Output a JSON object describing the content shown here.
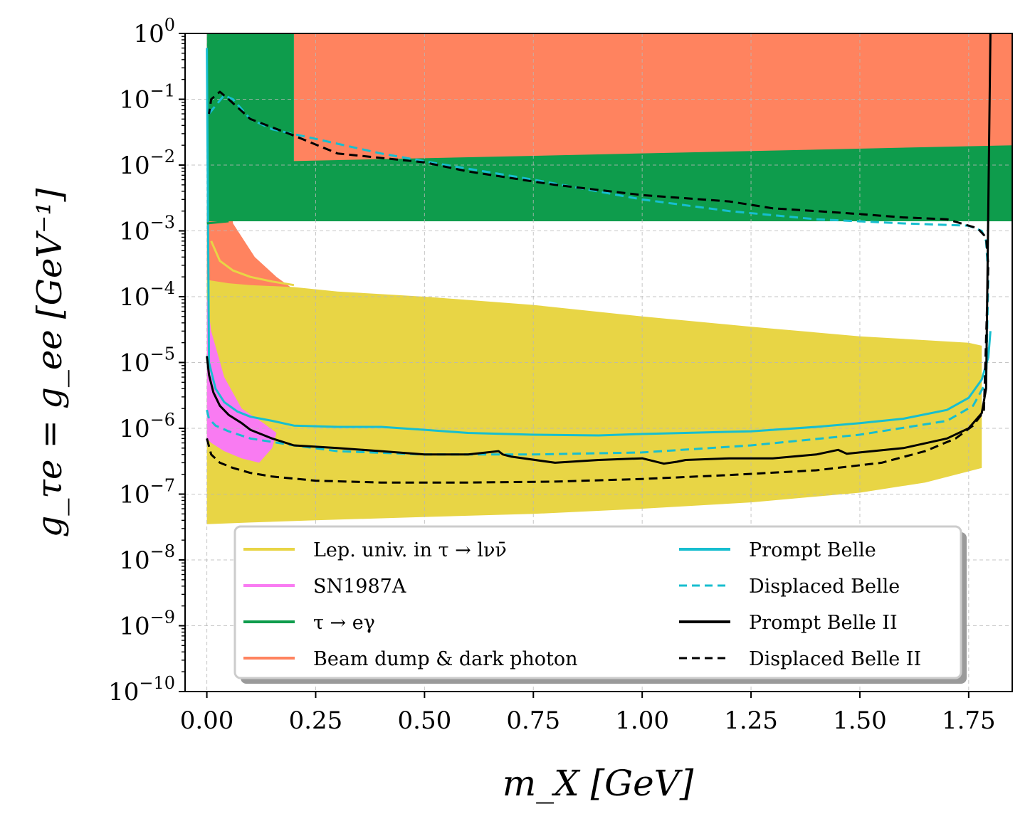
{
  "chart_data": {
    "type": "area",
    "xlabel": "m_X [GeV]",
    "ylabel": "g_τe = g_ee [GeV⁻¹]",
    "xlim": [
      -0.05,
      1.85
    ],
    "ylim_log10": [
      -10,
      0
    ],
    "yscale": "log",
    "grid": true,
    "x_ticks": [
      0.0,
      0.25,
      0.5,
      0.75,
      1.0,
      1.25,
      1.5,
      1.75
    ],
    "x_tick_labels": [
      "0.00",
      "0.25",
      "0.50",
      "0.75",
      "1.00",
      "1.25",
      "1.50",
      "1.75"
    ],
    "y_ticks_log10": [
      0,
      -1,
      -2,
      -3,
      -4,
      -5,
      -6,
      -7,
      -8,
      -9,
      -10
    ],
    "y_tick_labels": [
      "10^0",
      "10^−1",
      "10^−2",
      "10^−3",
      "10^−4",
      "10^−5",
      "10^−6",
      "10^−7",
      "10^−8",
      "10^−9",
      "10^−10"
    ],
    "legend_position": "lower-center",
    "regions": [
      {
        "name": "Beam dump & dark photon",
        "color": "#FF835F",
        "x_lower": [
          0.2,
          0.2,
          0.5,
          1.0,
          1.5,
          1.85
        ],
        "y_lower": [
          0.0115,
          0.0062,
          0.0055,
          0.005,
          0.0045,
          0.004
        ],
        "x_upper": [
          0.2,
          1.85
        ],
        "y_upper": [
          1.0,
          1.0
        ]
      },
      {
        "name": "Beam dump & dark photon (low-mass)",
        "color": "#FF835F",
        "x": [
          0.0,
          0.02,
          0.06,
          0.11,
          0.16,
          0.21,
          0.215,
          0.215,
          0.1,
          0.05,
          0.01,
          0.0
        ],
        "y": [
          1.0,
          1.0,
          0.0013,
          0.0004,
          0.0002,
          0.000115,
          0.0001,
          2.5e-05,
          2.4e-05,
          2.4e-05,
          3e-05,
          5e-05
        ]
      },
      {
        "name": "τ → eγ",
        "color": "#0E9C4C",
        "x": [
          0.0,
          0.2,
          0.2,
          1.85,
          1.85,
          0.0
        ],
        "y": [
          1.0,
          1.0,
          0.0115,
          0.02,
          0.0014,
          0.0014
        ]
      },
      {
        "name": "Lep. univ. in τ → lνν̄",
        "color": "#E8D545",
        "x_upper": [
          0.0,
          0.05,
          0.1,
          0.2,
          0.3,
          0.5,
          0.75,
          1.0,
          1.25,
          1.5,
          1.75,
          1.78
        ],
        "y_upper": [
          0.00018,
          0.00016,
          0.00015,
          0.00014,
          0.00012,
          0.0001,
          7.5e-05,
          5e-05,
          3.5e-05,
          2.5e-05,
          2e-05,
          1.8e-05
        ],
        "x_lower": [
          0.0,
          0.1,
          0.25,
          0.5,
          0.75,
          1.0,
          1.25,
          1.5,
          1.65,
          1.78
        ],
        "y_lower": [
          3.5e-08,
          3.7e-08,
          4e-08,
          4.5e-08,
          5e-08,
          6e-08,
          7.5e-08,
          1.05e-07,
          1.5e-07,
          2.5e-07
        ]
      },
      {
        "name": "SN1987A",
        "color": "#F97BF2",
        "x": [
          0.0,
          0.01,
          0.04,
          0.08,
          0.13,
          0.16,
          0.15,
          0.12,
          0.08,
          0.04,
          0.01,
          0.0
        ],
        "y": [
          0.0001,
          3e-05,
          6e-06,
          2e-06,
          1.2e-06,
          8.5e-07,
          5e-07,
          3e-07,
          3.5e-07,
          4.5e-07,
          6e-07,
          7e-07
        ]
      }
    ],
    "series": [
      {
        "name": "Prompt Belle",
        "color": "#17BECF",
        "style": "solid",
        "x": [
          0.0,
          0.005,
          0.02,
          0.04,
          0.07,
          0.1,
          0.15,
          0.2,
          0.3,
          0.4,
          0.5,
          0.6,
          0.75,
          0.9,
          1.0,
          1.25,
          1.4,
          1.5,
          1.6,
          1.7,
          1.75,
          1.78,
          1.795,
          1.8
        ],
        "y": [
          0.6,
          1e-05,
          4e-06,
          2.5e-06,
          1.8e-06,
          1.5e-06,
          1.3e-06,
          1.1e-06,
          1.05e-06,
          1.05e-06,
          9.5e-07,
          8.5e-07,
          8e-07,
          7.8e-07,
          8.2e-07,
          9e-07,
          1.05e-06,
          1.2e-06,
          1.4e-06,
          1.9e-06,
          2.9e-06,
          5.5e-06,
          1.2e-05,
          3e-05
        ]
      },
      {
        "name": "Displaced Belle",
        "color": "#17BECF",
        "style": "dashed",
        "x": [
          0.0,
          0.005,
          0.02,
          0.05,
          0.1,
          0.2,
          0.3,
          0.5,
          0.75,
          1.0,
          1.25,
          1.5,
          1.7,
          1.76,
          1.79,
          1.795,
          1.79,
          1.78,
          1.75,
          1.6,
          1.4,
          1.2,
          1.0,
          0.75,
          0.55,
          0.4,
          0.25,
          0.15,
          0.1,
          0.06,
          0.04,
          0.02,
          0.005
        ],
        "y": [
          1.9e-06,
          1.4e-06,
          1.1e-06,
          9e-07,
          7e-07,
          5.5e-07,
          4.5e-07,
          4e-07,
          4e-07,
          4.3e-07,
          5.5e-07,
          8e-07,
          1.3e-06,
          2.2e-06,
          5e-06,
          0.0002,
          0.0007,
          0.001,
          0.0012,
          0.0013,
          0.0015,
          0.002,
          0.003,
          0.006,
          0.01,
          0.015,
          0.025,
          0.035,
          0.05,
          0.1,
          0.115,
          0.08,
          0.06
        ]
      },
      {
        "name": "Prompt Belle II",
        "color": "#000000",
        "style": "solid",
        "x": [
          0.0,
          0.005,
          0.015,
          0.03,
          0.05,
          0.08,
          0.1,
          0.15,
          0.2,
          0.3,
          0.4,
          0.5,
          0.6,
          0.67,
          0.68,
          0.7,
          0.8,
          0.9,
          1.0,
          1.05,
          1.08,
          1.1,
          1.2,
          1.3,
          1.4,
          1.45,
          1.47,
          1.5,
          1.6,
          1.7,
          1.75,
          1.78,
          1.79,
          1.8
        ],
        "y": [
          1.25e-05,
          6.5e-06,
          3.5e-06,
          2.2e-06,
          1.6e-06,
          1.2e-06,
          9.5e-07,
          7e-07,
          5.5e-07,
          5e-07,
          4.5e-07,
          4e-07,
          4e-07,
          4.5e-07,
          4e-07,
          3.7e-07,
          3e-07,
          3.3e-07,
          3.5e-07,
          2.9e-07,
          3.1e-07,
          3.3e-07,
          3.5e-07,
          3.5e-07,
          4e-07,
          4.7e-07,
          4.1e-07,
          4.3e-07,
          5e-07,
          7e-07,
          1e-06,
          1.7e-06,
          4e-06,
          1.0
        ]
      },
      {
        "name": "Displaced Belle II",
        "color": "#000000",
        "style": "dashed",
        "x": [
          0.0,
          0.01,
          0.03,
          0.06,
          0.1,
          0.15,
          0.25,
          0.4,
          0.6,
          0.8,
          1.0,
          1.2,
          1.4,
          1.55,
          1.65,
          1.72,
          1.76,
          1.785,
          1.795,
          1.79,
          1.77,
          1.7,
          1.6,
          1.5,
          1.4,
          1.3,
          1.2,
          1.0,
          0.8,
          0.6,
          0.5,
          0.3,
          0.2,
          0.1,
          0.05,
          0.03,
          0.01,
          0.005
        ],
        "y": [
          7e-07,
          4e-07,
          3e-07,
          2.5e-07,
          2.1e-07,
          1.85e-07,
          1.6e-07,
          1.5e-07,
          1.5e-07,
          1.55e-07,
          1.7e-07,
          1.95e-07,
          2.3e-07,
          3e-07,
          4.5e-07,
          7e-07,
          1.1e-06,
          1.8e-06,
          0.0003,
          0.0008,
          0.0011,
          0.0015,
          0.0016,
          0.0018,
          0.002,
          0.0022,
          0.0028,
          0.0035,
          0.005,
          0.008,
          0.011,
          0.015,
          0.028,
          0.05,
          0.1,
          0.13,
          0.1,
          0.06
        ]
      },
      {
        "name": "Lep. univ. in τ → lνν̄ (edge)",
        "color": "#E8D545",
        "style": "solid",
        "x": [
          0.01,
          0.03,
          0.06,
          0.1,
          0.15,
          0.2
        ],
        "y": [
          0.0007,
          0.00035,
          0.00025,
          0.0002,
          0.00017,
          0.00015
        ]
      },
      {
        "name": "τ → eγ (edge)",
        "color": "#0E9C4C",
        "style": "solid",
        "x": [
          0.0,
          0.05
        ],
        "y": [
          0.0013,
          0.0014
        ]
      }
    ],
    "legend": {
      "items": [
        {
          "label": "Lep. univ. in τ → lνν̄",
          "color": "#E8D545",
          "style": "solid"
        },
        {
          "label": "SN1987A",
          "color": "#F97BF2",
          "style": "solid"
        },
        {
          "label": "τ → eγ",
          "color": "#0E9C4C",
          "style": "solid"
        },
        {
          "label": "Beam dump & dark photon",
          "color": "#FF835F",
          "style": "solid"
        },
        {
          "label": "Prompt Belle",
          "color": "#17BECF",
          "style": "solid"
        },
        {
          "label": "Displaced Belle",
          "color": "#17BECF",
          "style": "dashed"
        },
        {
          "label": "Prompt Belle II",
          "color": "#000000",
          "style": "solid"
        },
        {
          "label": "Displaced Belle II",
          "color": "#000000",
          "style": "dashed"
        }
      ]
    }
  }
}
